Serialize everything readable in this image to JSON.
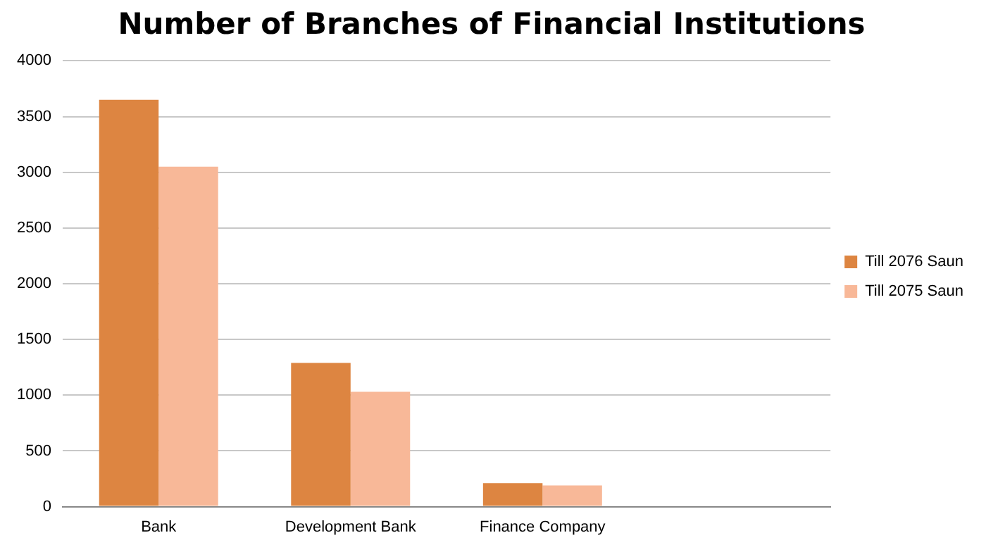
{
  "chart_data": {
    "type": "bar",
    "title": "Number of Branches of Financial Institutions",
    "categories": [
      "Bank",
      "Development Bank",
      "Finance Company",
      null
    ],
    "series": [
      {
        "name": "Till 2076 Saun",
        "color": "#dd8541",
        "values": [
          3650,
          1290,
          210,
          null
        ]
      },
      {
        "name": "Till 2075 Saun",
        "color": "#f8b898",
        "values": [
          3050,
          1030,
          190,
          null
        ]
      }
    ],
    "ylim": [
      0,
      4000
    ],
    "yticks": [
      0,
      500,
      1000,
      1500,
      2000,
      2500,
      3000,
      3500,
      4000
    ],
    "grid": "y",
    "legend": "right"
  }
}
